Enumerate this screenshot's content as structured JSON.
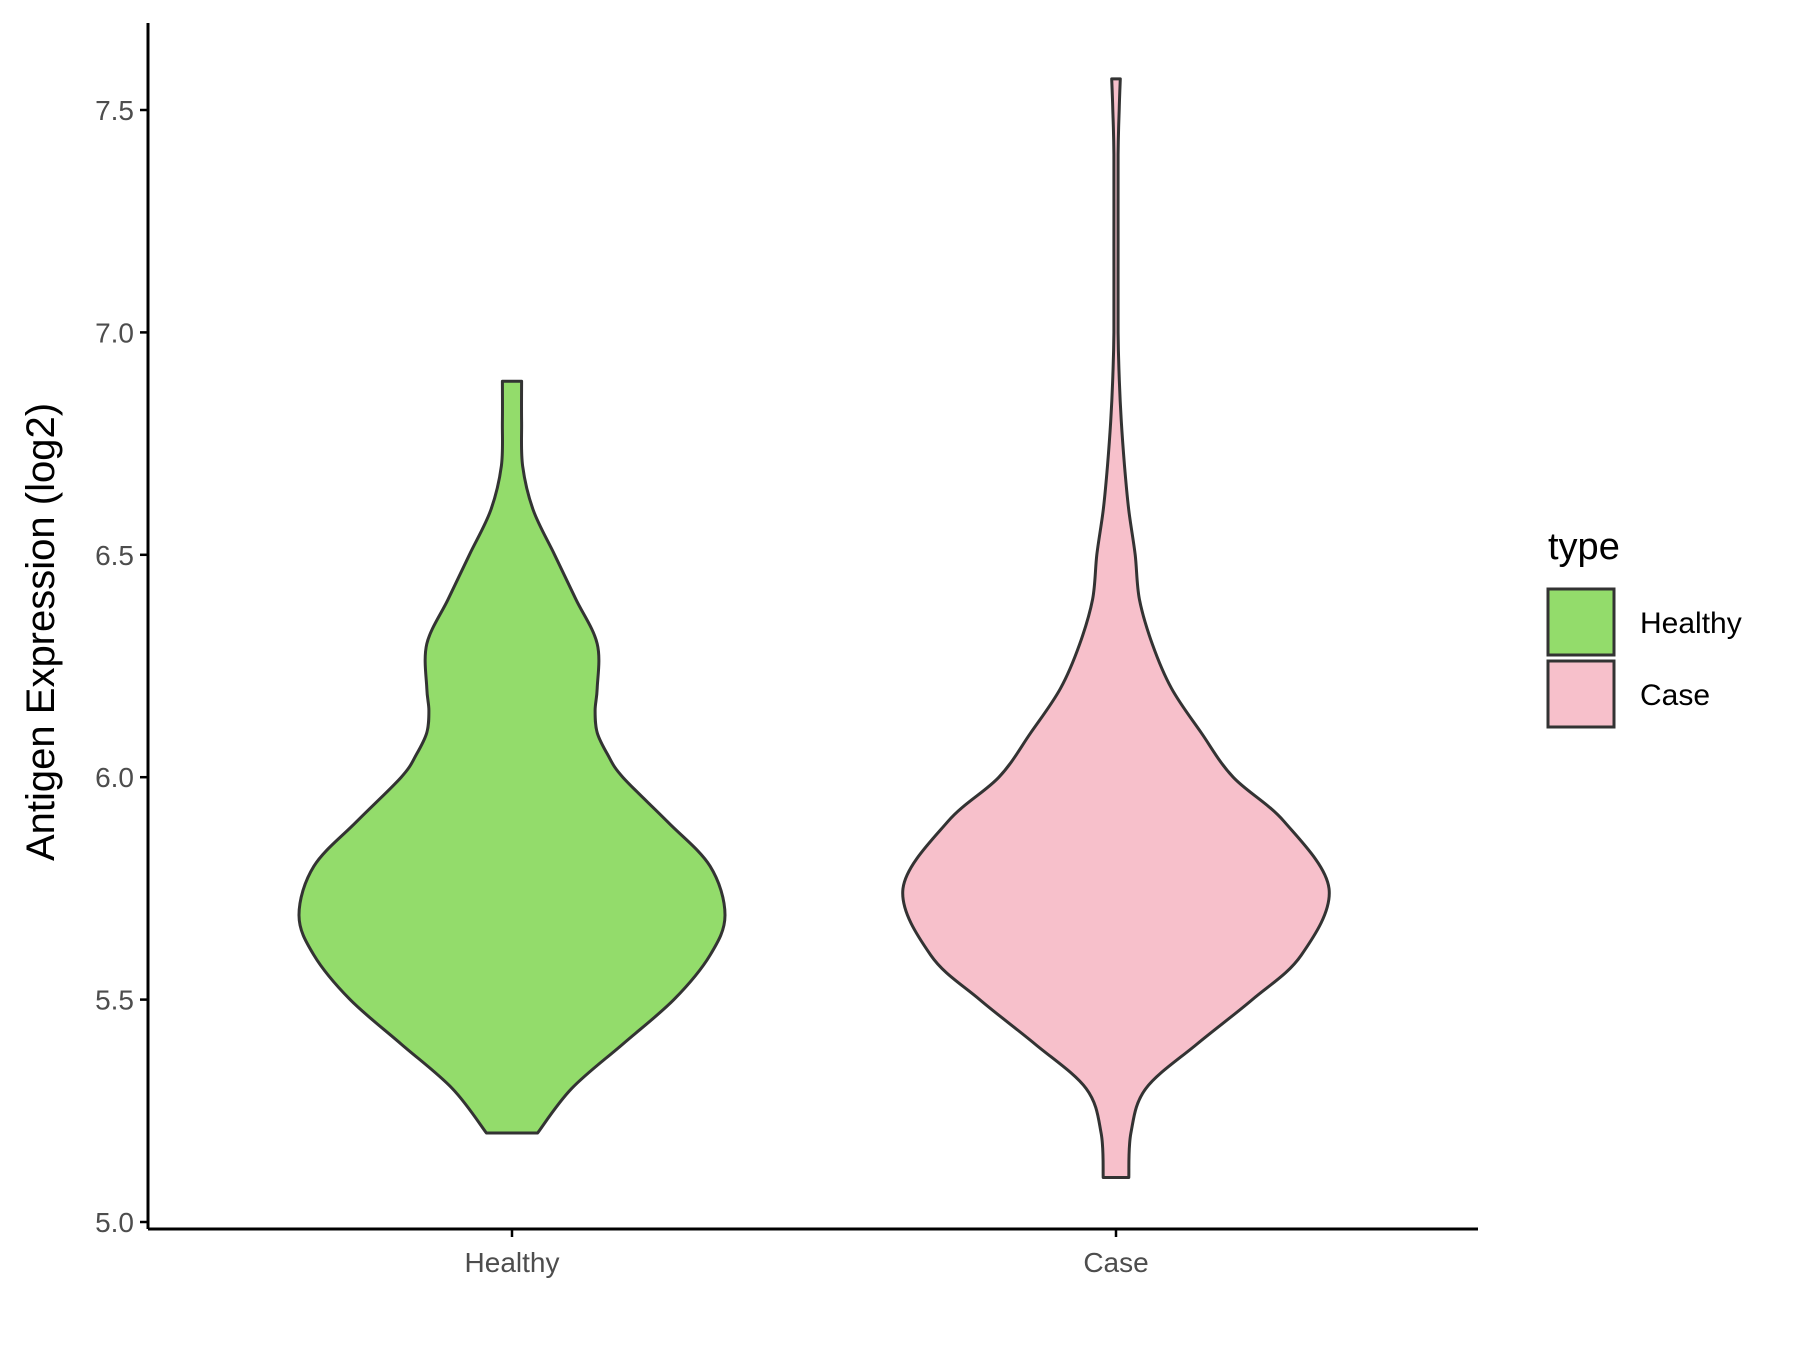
{
  "chart_data": {
    "type": "violin",
    "ylabel": "Antigen Expression (log2)",
    "xlabel": "",
    "ylim": [
      5.0,
      7.6
    ],
    "yticks": [
      5.0,
      5.5,
      6.0,
      6.5,
      7.0,
      7.5
    ],
    "ytick_labels": [
      "5.0",
      "5.5",
      "6.0",
      "6.5",
      "7.0",
      "7.5"
    ],
    "categories": [
      "Healthy",
      "Case"
    ],
    "grid": false,
    "legend": {
      "title": "type",
      "position": "right",
      "items": [
        {
          "label": "Healthy",
          "color": "#93dc6b"
        },
        {
          "label": "Case",
          "color": "#f7c0cb"
        }
      ]
    },
    "series": [
      {
        "name": "Healthy",
        "color": "#93dc6b",
        "min": 5.2,
        "max": 6.89,
        "density_profile": [
          [
            5.2,
            0.12
          ],
          [
            5.3,
            0.28
          ],
          [
            5.4,
            0.52
          ],
          [
            5.5,
            0.76
          ],
          [
            5.6,
            0.93
          ],
          [
            5.69,
            1.0
          ],
          [
            5.8,
            0.93
          ],
          [
            5.9,
            0.73
          ],
          [
            6.0,
            0.52
          ],
          [
            6.05,
            0.45
          ],
          [
            6.1,
            0.4
          ],
          [
            6.15,
            0.39
          ],
          [
            6.2,
            0.4
          ],
          [
            6.3,
            0.4
          ],
          [
            6.4,
            0.3
          ],
          [
            6.5,
            0.2
          ],
          [
            6.6,
            0.1
          ],
          [
            6.7,
            0.05
          ],
          [
            6.8,
            0.045
          ],
          [
            6.89,
            0.045
          ]
        ]
      },
      {
        "name": "Case",
        "color": "#f7c0cb",
        "min": 5.1,
        "max": 7.57,
        "density_profile": [
          [
            5.1,
            0.06
          ],
          [
            5.2,
            0.07
          ],
          [
            5.3,
            0.14
          ],
          [
            5.4,
            0.38
          ],
          [
            5.5,
            0.64
          ],
          [
            5.6,
            0.87
          ],
          [
            5.75,
            1.0
          ],
          [
            5.9,
            0.79
          ],
          [
            6.0,
            0.55
          ],
          [
            6.1,
            0.4
          ],
          [
            6.2,
            0.26
          ],
          [
            6.3,
            0.17
          ],
          [
            6.4,
            0.11
          ],
          [
            6.5,
            0.09
          ],
          [
            6.6,
            0.06
          ],
          [
            6.7,
            0.04
          ],
          [
            6.8,
            0.025
          ],
          [
            6.9,
            0.015
          ],
          [
            7.0,
            0.01
          ],
          [
            7.2,
            0.01
          ],
          [
            7.4,
            0.01
          ],
          [
            7.5,
            0.015
          ],
          [
            7.57,
            0.02
          ]
        ]
      }
    ]
  }
}
